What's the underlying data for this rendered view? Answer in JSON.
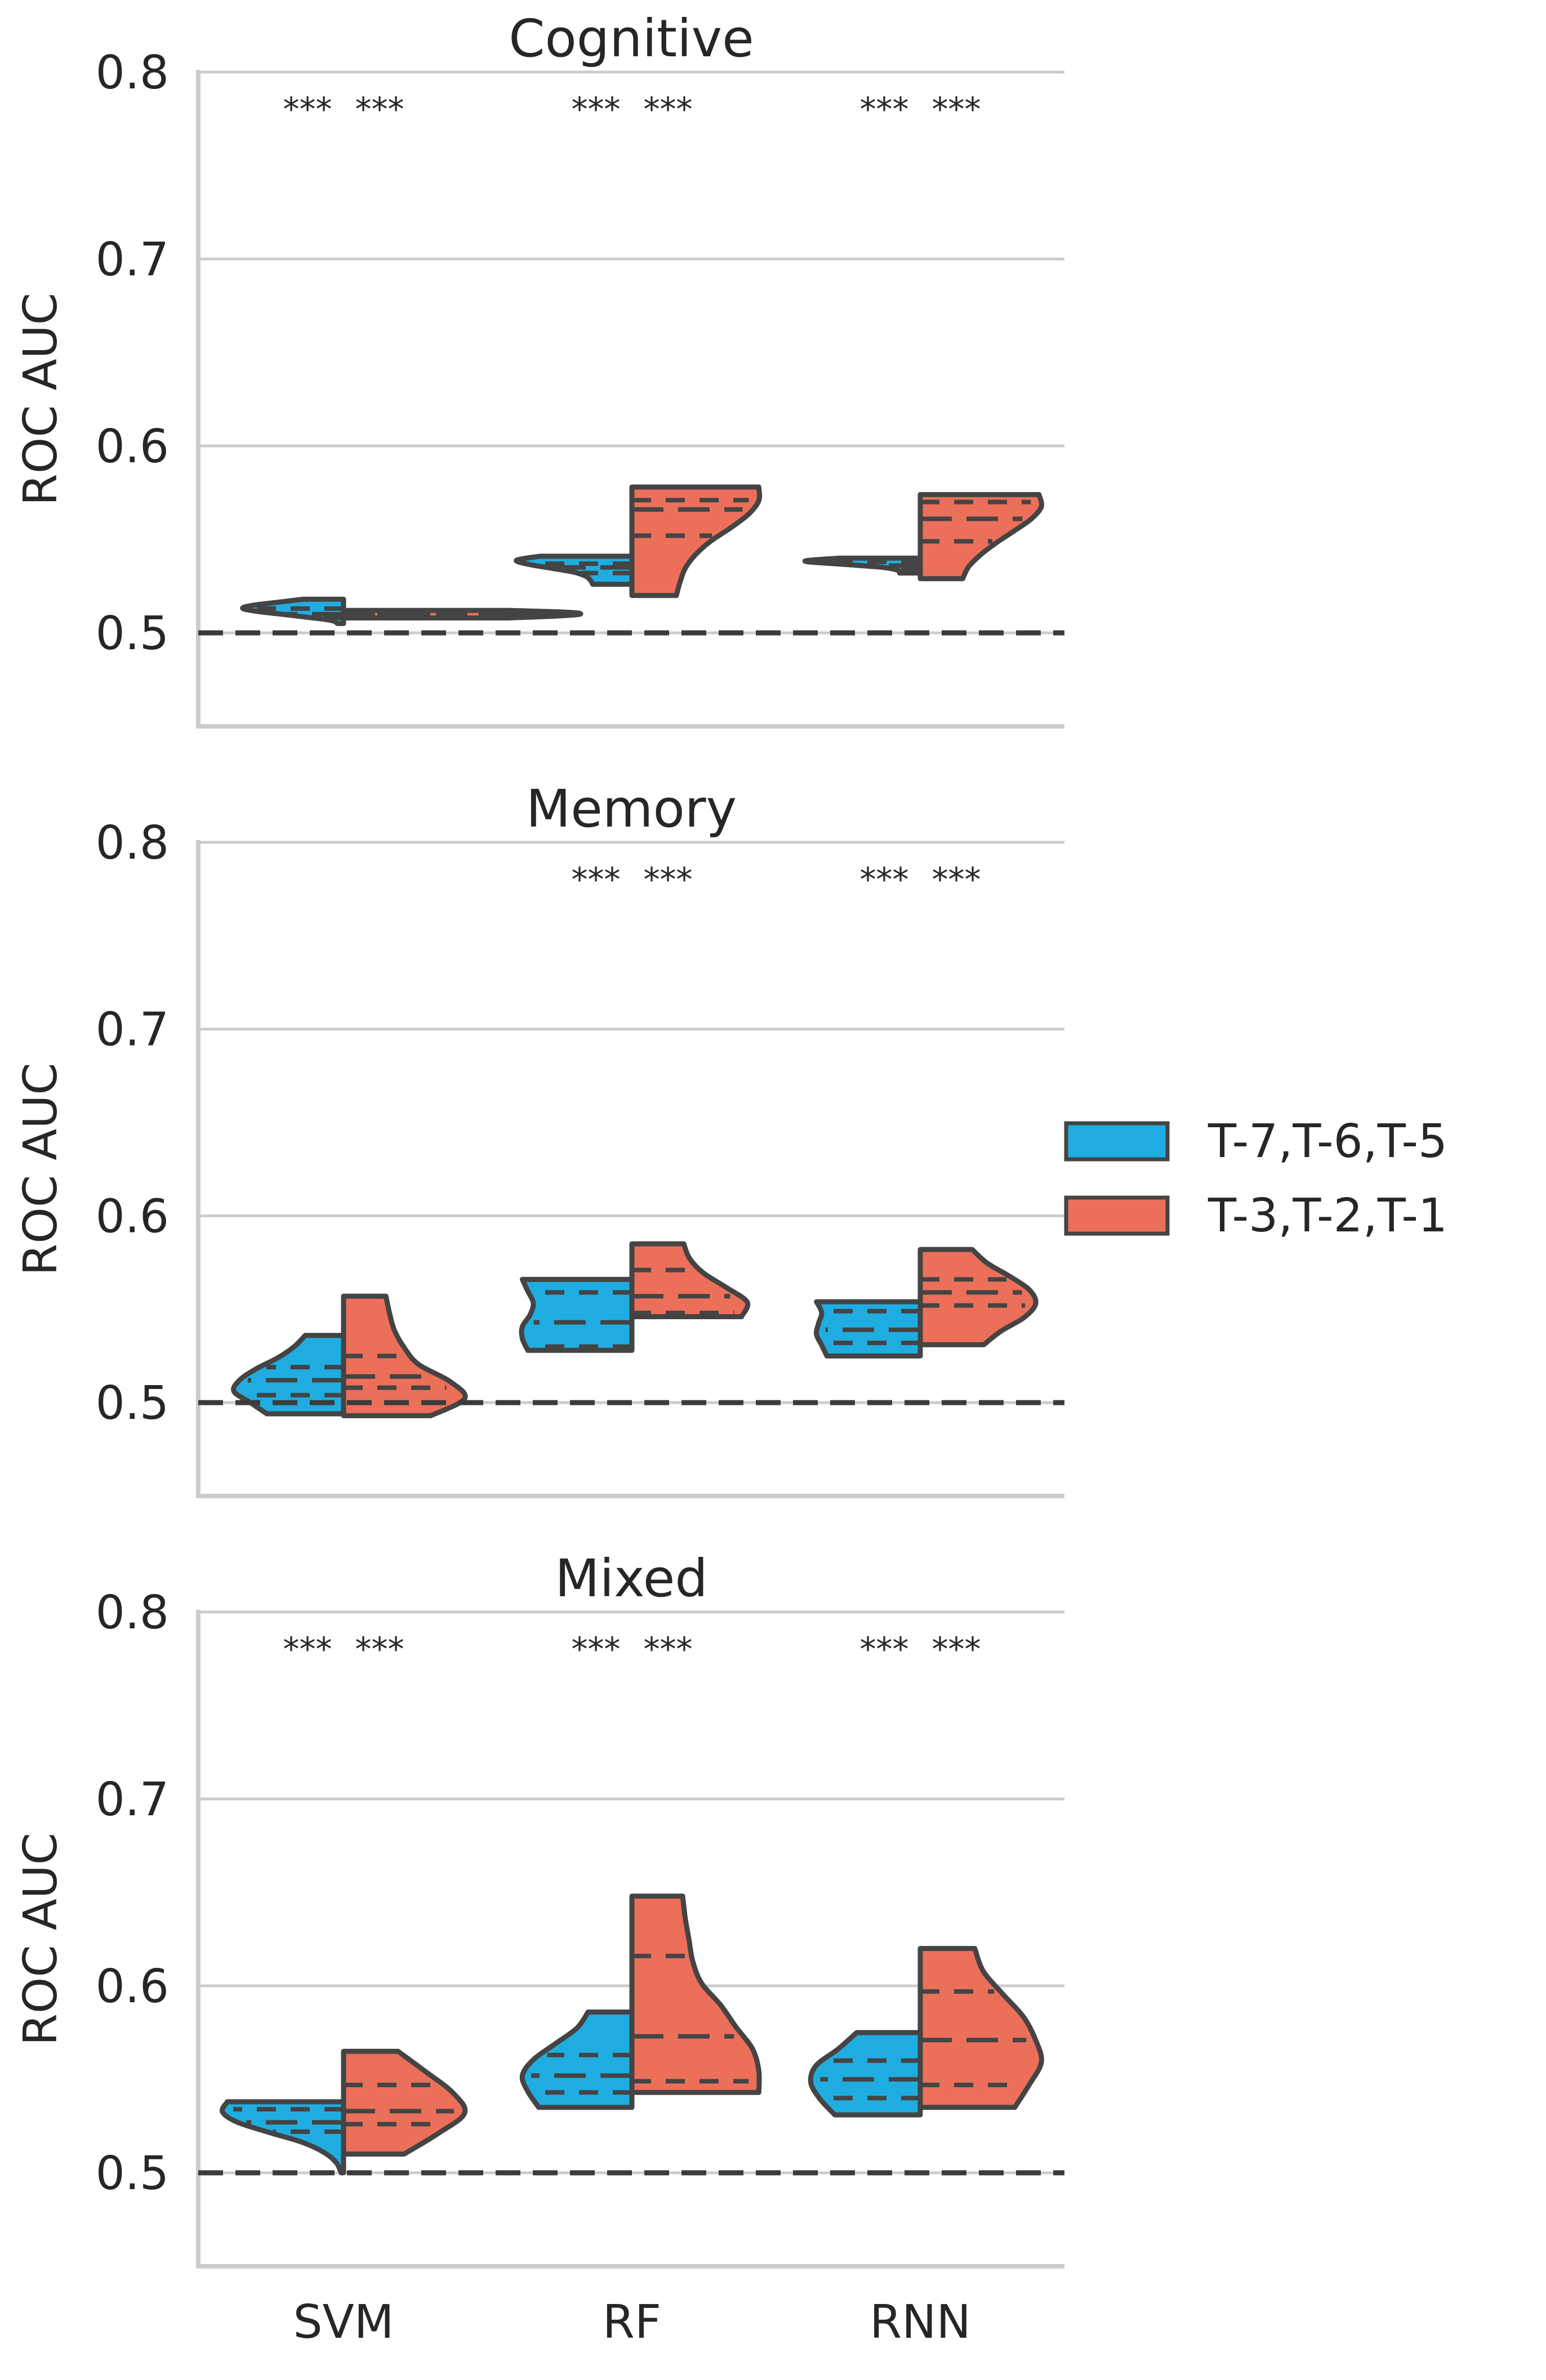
{
  "chart_data": {
    "type": "violin",
    "categories": [
      "SVM",
      "RF",
      "RNN"
    ],
    "ylabel": "ROC AUC",
    "ylim": [
      0.45,
      0.8
    ],
    "yticks": [
      "0.5",
      "0.6",
      "0.7",
      "0.8"
    ],
    "chance_level": 0.5,
    "grid": true,
    "legend_position": "right",
    "legend": [
      {
        "label": "T-7,T-6,T-5",
        "color": "#1fade1"
      },
      {
        "label": "T-3,T-2,T-1",
        "color": "#ec6f5a"
      }
    ],
    "panels": [
      {
        "title": "Cognitive",
        "significance": [
          [
            "***",
            "***"
          ],
          [
            "***",
            "***"
          ],
          [
            "***",
            "***"
          ]
        ],
        "groups": [
          {
            "left": {
              "min": 0.505,
              "max": 0.518,
              "width": 0.35,
              "shape": [
                0.06,
                0.12,
                0.34,
                0.6,
                0.86,
                1.0,
                0.9,
                0.65,
                0.4
              ],
              "quartiles": [
                0.508,
                0.51,
                0.513
              ]
            },
            "right": {
              "min": 0.508,
              "max": 0.512,
              "width": 0.82,
              "shape": [
                0.7,
                0.9,
                1.0,
                0.95,
                0.7
              ],
              "quartiles": [
                0.5095,
                0.51,
                0.5105
              ]
            }
          },
          {
            "left": {
              "min": 0.526,
              "max": 0.541,
              "width": 0.4,
              "shape": [
                0.34,
                0.36,
                0.4,
                0.5,
                0.7,
                0.9,
                1.0,
                0.8
              ],
              "quartiles": [
                0.532,
                0.535,
                0.537
              ]
            },
            "right": {
              "min": 0.52,
              "max": 0.578,
              "width": 0.44,
              "shape": [
                0.35,
                0.38,
                0.42,
                0.5,
                0.62,
                0.78,
                0.92,
                1.0,
                1.0
              ],
              "quartiles": [
                0.552,
                0.566,
                0.571
              ]
            }
          },
          {
            "left": {
              "min": 0.532,
              "max": 0.54,
              "width": 0.4,
              "shape": [
                0.18,
                0.2,
                0.35,
                0.7,
                1.0,
                0.7
              ],
              "quartiles": [
                0.534,
                0.536,
                0.538
              ]
            },
            "right": {
              "min": 0.529,
              "max": 0.574,
              "width": 0.42,
              "shape": [
                0.35,
                0.4,
                0.5,
                0.63,
                0.78,
                0.92,
                1.0,
                0.98
              ],
              "quartiles": [
                0.549,
                0.561,
                0.57
              ]
            }
          }
        ]
      },
      {
        "title": "Memory",
        "significance": [
          [
            "",
            ""
          ],
          [
            "***",
            "***"
          ],
          [
            "***",
            "***"
          ]
        ],
        "groups": [
          {
            "left": {
              "min": 0.494,
              "max": 0.536,
              "width": 0.38,
              "shape": [
                0.7,
                0.85,
                1.0,
                0.95,
                0.8,
                0.6,
                0.45,
                0.35
              ],
              "quartiles": [
                0.504,
                0.512,
                0.519
              ]
            },
            "right": {
              "min": 0.493,
              "max": 0.557,
              "width": 0.42,
              "shape": [
                0.72,
                1.0,
                0.88,
                0.62,
                0.5,
                0.42,
                0.38,
                0.35
              ],
              "quartiles": [
                0.508,
                0.514,
                0.525
              ]
            }
          },
          {
            "left": {
              "min": 0.528,
              "max": 0.566,
              "width": 0.38,
              "shape": [
                0.95,
                1.0,
                1.0,
                0.93,
                0.9,
                0.95,
                1.0
              ],
              "quartiles": [
                0.53,
                0.543,
                0.559
              ]
            },
            "right": {
              "min": 0.546,
              "max": 0.585,
              "width": 0.4,
              "shape": [
                0.95,
                1.0,
                0.82,
                0.62,
                0.5,
                0.45
              ],
              "quartiles": [
                0.548,
                0.557,
                0.571
              ]
            }
          },
          {
            "left": {
              "min": 0.525,
              "max": 0.554,
              "width": 0.36,
              "shape": [
                0.9,
                0.95,
                1.0,
                0.98,
                0.95,
                1.0
              ],
              "quartiles": [
                0.532,
                0.539,
                0.549
              ]
            },
            "right": {
              "min": 0.531,
              "max": 0.582,
              "width": 0.4,
              "shape": [
                0.55,
                0.7,
                0.9,
                1.0,
                0.95,
                0.78,
                0.58,
                0.45
              ],
              "quartiles": [
                0.552,
                0.559,
                0.566
              ]
            }
          }
        ]
      },
      {
        "title": "Mixed",
        "significance": [
          [
            "***",
            "***"
          ],
          [
            "***",
            "***"
          ],
          [
            "***",
            "***"
          ]
        ],
        "groups": [
          {
            "left": {
              "min": 0.5,
              "max": 0.538,
              "width": 0.42,
              "shape": [
                0.02,
                0.06,
                0.16,
                0.34,
                0.62,
                0.88,
                1.0,
                0.96
              ],
              "quartiles": [
                0.522,
                0.527,
                0.534
              ]
            },
            "right": {
              "min": 0.51,
              "max": 0.565,
              "width": 0.42,
              "shape": [
                0.5,
                0.78,
                1.0,
                0.9,
                0.68,
                0.45
              ],
              "quartiles": [
                0.526,
                0.533,
                0.547
              ]
            }
          },
          {
            "left": {
              "min": 0.535,
              "max": 0.586,
              "width": 0.38,
              "shape": [
                0.85,
                0.95,
                1.0,
                0.9,
                0.7,
                0.5,
                0.4
              ],
              "quartiles": [
                0.543,
                0.552,
                0.563
              ]
            },
            "right": {
              "min": 0.543,
              "max": 0.648,
              "width": 0.44,
              "shape": [
                1.0,
                1.0,
                0.95,
                0.82,
                0.7,
                0.55,
                0.48,
                0.45,
                0.42,
                0.4
              ],
              "quartiles": [
                0.549,
                0.573,
                0.616
              ]
            }
          },
          {
            "left": {
              "min": 0.531,
              "max": 0.575,
              "width": 0.38,
              "shape": [
                0.78,
                0.92,
                1.0,
                0.95,
                0.75,
                0.58
              ],
              "quartiles": [
                0.54,
                0.55,
                0.56
              ]
            },
            "right": {
              "min": 0.535,
              "max": 0.62,
              "width": 0.42,
              "shape": [
                0.78,
                0.9,
                1.0,
                0.95,
                0.85,
                0.68,
                0.52,
                0.45
              ],
              "quartiles": [
                0.547,
                0.571,
                0.597
              ]
            }
          }
        ]
      }
    ]
  }
}
